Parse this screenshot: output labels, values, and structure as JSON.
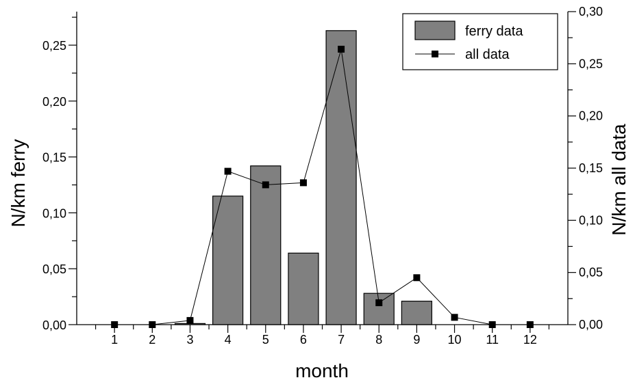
{
  "chart_data": {
    "type": "bar",
    "xlabel": "month",
    "ylabel_left": "N/km ferry",
    "ylabel_right": "N/km all data",
    "categories": [
      "1",
      "2",
      "3",
      "4",
      "5",
      "6",
      "7",
      "8",
      "9",
      "10",
      "11",
      "12"
    ],
    "x_values": [
      1,
      2,
      3,
      4,
      5,
      6,
      7,
      8,
      9,
      10,
      11,
      12
    ],
    "ylim_left": [
      0,
      0.28
    ],
    "ylim_right": [
      0,
      0.3
    ],
    "y_ticks_left": [
      "0,00",
      "0,05",
      "0,10",
      "0,15",
      "0,20",
      "0,25"
    ],
    "y_ticks_right": [
      "0,00",
      "0,05",
      "0,10",
      "0,15",
      "0,20",
      "0,25",
      "0,30"
    ],
    "series": [
      {
        "name": "ferry data",
        "kind": "bar",
        "axis": "left",
        "color": "#808080",
        "values": [
          0,
          0,
          0.001,
          0.115,
          0.142,
          0.064,
          0.263,
          0.028,
          0.021,
          0,
          0,
          0
        ]
      },
      {
        "name": "all data",
        "kind": "line",
        "axis": "right",
        "color": "#000000",
        "marker": "square",
        "values": [
          0,
          0,
          0.004,
          0.147,
          0.134,
          0.136,
          0.264,
          0.021,
          0.045,
          0.007,
          0,
          0
        ]
      }
    ],
    "legend": {
      "position": "top-right",
      "entries": [
        "ferry data",
        "all data"
      ]
    },
    "grid": false
  }
}
